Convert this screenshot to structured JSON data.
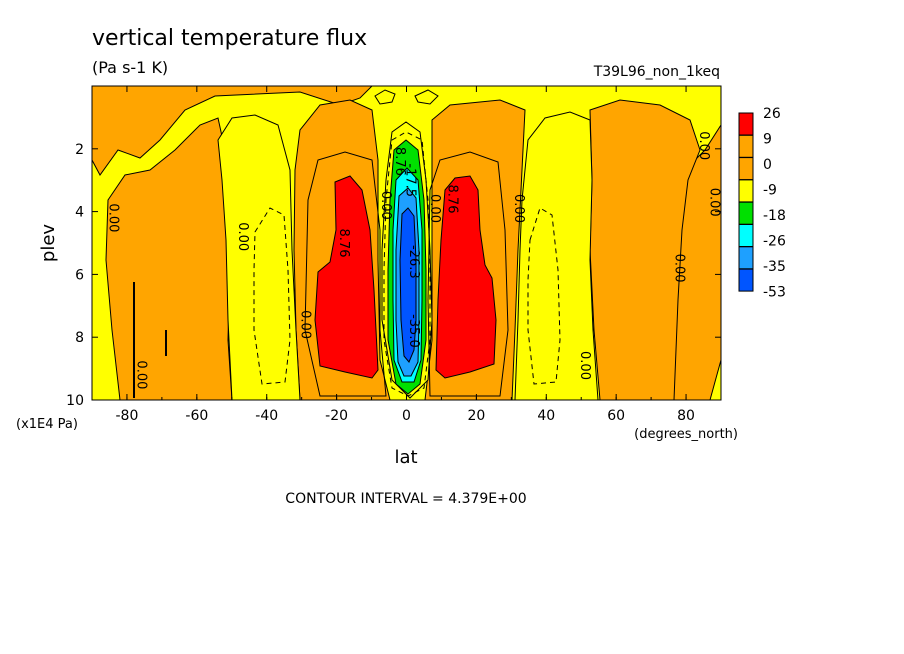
{
  "chart_data": {
    "type": "heatmap",
    "title": "vertical temperature flux",
    "units": "(Pa s-1 K)",
    "dataset_label": "T39L96_non_1keq",
    "xlabel": "lat",
    "x_units": "(degrees_north)",
    "ylabel": "plev",
    "y_units": "(x1E4 Pa)",
    "xlim": [
      -90,
      90
    ],
    "ylim": [
      10,
      0
    ],
    "x_ticks": [
      -80,
      -60,
      -40,
      -20,
      0,
      20,
      40,
      60,
      80
    ],
    "y_ticks": [
      2,
      4,
      6,
      8,
      10
    ],
    "contour_interval_text": "CONTOUR INTERVAL = 4.379E+00",
    "colorbar": {
      "labels": [
        "26",
        "9",
        "0",
        "-9",
        "-18",
        "-26",
        "-35",
        "-53"
      ],
      "colors": [
        "#ff0000",
        "#ffa500",
        "#ffa500",
        "#ffff00",
        "#00e000",
        "#00ffff",
        "#1ea0ff",
        "#0055ff"
      ]
    },
    "contour_labels": [
      {
        "text": "0.00",
        "lat": -85,
        "p": 4.2
      },
      {
        "text": "0.00",
        "lat": -77,
        "p": 9.2
      },
      {
        "text": "0.00",
        "lat": -48,
        "p": 4.8
      },
      {
        "text": "0.00",
        "lat": -30,
        "p": 7.6
      },
      {
        "text": "8.76",
        "lat": -19,
        "p": 5.0
      },
      {
        "text": "0.00",
        "lat": -7,
        "p": 3.8
      },
      {
        "text": "8.76",
        "lat": -3,
        "p": 2.4
      },
      {
        "text": "-17.5",
        "lat": 0,
        "p": 3.0
      },
      {
        "text": "-26.3",
        "lat": 1,
        "p": 5.6
      },
      {
        "text": "-35.0",
        "lat": 1,
        "p": 7.8
      },
      {
        "text": "0.00",
        "lat": 7,
        "p": 3.9
      },
      {
        "text": "8.76",
        "lat": 12,
        "p": 3.6
      },
      {
        "text": "0.00",
        "lat": 31,
        "p": 3.9
      },
      {
        "text": "0.00",
        "lat": 50,
        "p": 8.9
      },
      {
        "text": "0.00",
        "lat": 77,
        "p": 5.8
      },
      {
        "text": "0.00",
        "lat": 84,
        "p": 1.9
      },
      {
        "text": "0.00",
        "lat": 87,
        "p": 3.7
      }
    ]
  }
}
